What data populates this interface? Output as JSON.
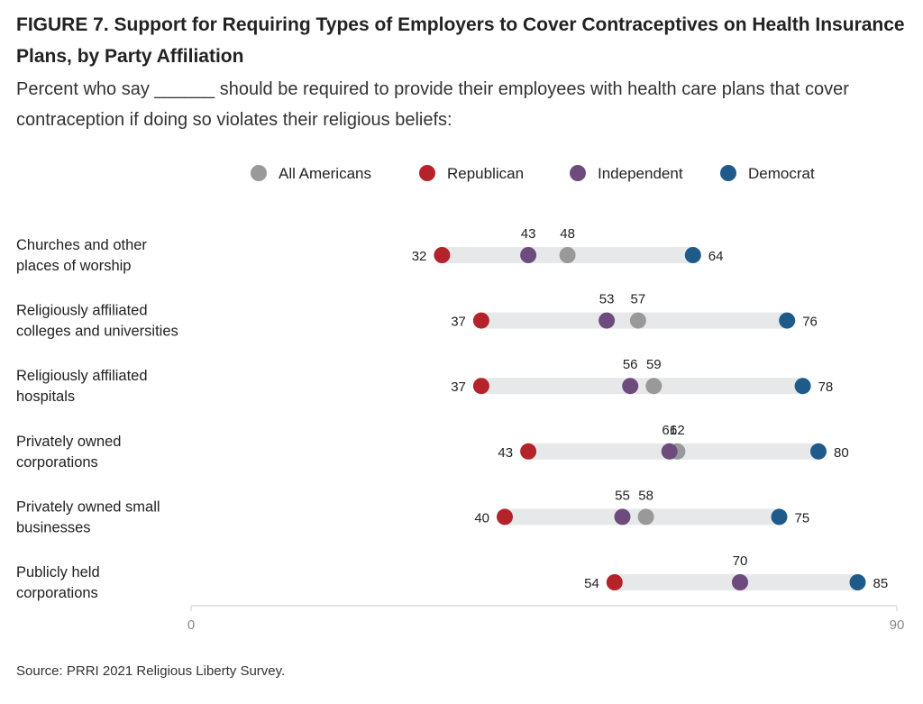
{
  "title": "FIGURE 7.  Support for Requiring Types of Employers to Cover Contraceptives on Health Insurance Plans, by Party Affiliation",
  "subtitle": "Percent who say ______ should be required to provide their employees with health care plans that cover contraception if doing so violates their religious beliefs:",
  "source": "Source: PRRI 2021 Religious Liberty Survey.",
  "colors": {
    "all_americans": "#999999",
    "republican": "#b5232a",
    "independent": "#6d4c7d",
    "democrat": "#1f5b8a",
    "range_bar": "#e6e8ea",
    "axis": "#cccccc"
  },
  "chart_data": {
    "type": "dot-range",
    "xlim": [
      0,
      90
    ],
    "xticks": [
      "0",
      "90"
    ],
    "legend": [
      "All Americans",
      "Republican",
      "Independent",
      "Democrat"
    ],
    "legend_position": "top",
    "categories": [
      [
        "Churches and other",
        "places of worship"
      ],
      [
        "Religiously affiliated",
        "colleges and universities"
      ],
      [
        "Religiously affiliated",
        "hospitals"
      ],
      [
        "Privately owned",
        "corporations"
      ],
      [
        "Privately owned small",
        "businesses"
      ],
      [
        "Publicly held",
        "corporations"
      ]
    ],
    "series": [
      {
        "name": "All Americans",
        "values": [
          48,
          57,
          59,
          62,
          58,
          70
        ]
      },
      {
        "name": "Republican",
        "values": [
          32,
          37,
          37,
          43,
          40,
          54
        ]
      },
      {
        "name": "Independent",
        "values": [
          43,
          53,
          56,
          61,
          55,
          70
        ]
      },
      {
        "name": "Democrat",
        "values": [
          64,
          76,
          78,
          80,
          75,
          85
        ]
      }
    ],
    "top_labels": [
      [
        "43",
        "48"
      ],
      [
        "53",
        "57"
      ],
      [
        "56",
        "59"
      ],
      [
        "61",
        "62"
      ],
      [
        "55",
        "58"
      ],
      [
        "70"
      ]
    ]
  }
}
